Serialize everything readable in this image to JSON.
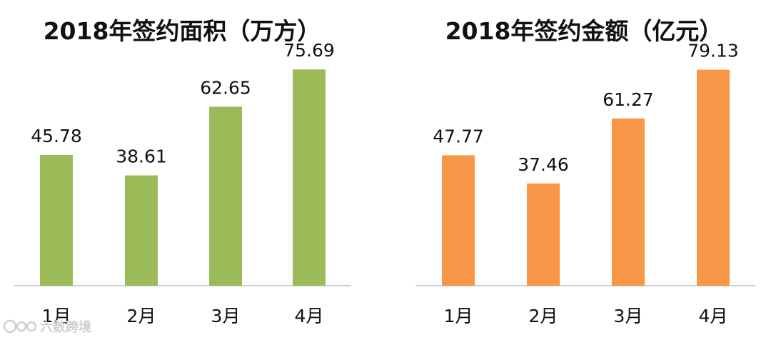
{
  "watermark": {
    "text": "六数跨境",
    "icon": "watermark-logo-icon"
  },
  "chart_data": [
    {
      "type": "bar",
      "title": "2018年签约面积（万方）",
      "categories": [
        "1月",
        "2月",
        "3月",
        "4月"
      ],
      "values": [
        45.78,
        38.61,
        62.65,
        75.69
      ],
      "value_labels": [
        "45.78",
        "38.61",
        "62.65",
        "75.69"
      ],
      "color": "#9BBB59",
      "xlabel": "",
      "ylabel": "",
      "ylim": [
        0,
        80
      ],
      "grid": false
    },
    {
      "type": "bar",
      "title": "2018年签约金额（亿元）",
      "categories": [
        "1月",
        "2月",
        "3月",
        "4月"
      ],
      "values": [
        47.77,
        37.46,
        61.27,
        79.13
      ],
      "value_labels": [
        "47.77",
        "37.46",
        "61.27",
        "79.13"
      ],
      "color": "#F79646",
      "xlabel": "",
      "ylabel": "",
      "ylim": [
        0,
        84
      ],
      "grid": false
    }
  ]
}
